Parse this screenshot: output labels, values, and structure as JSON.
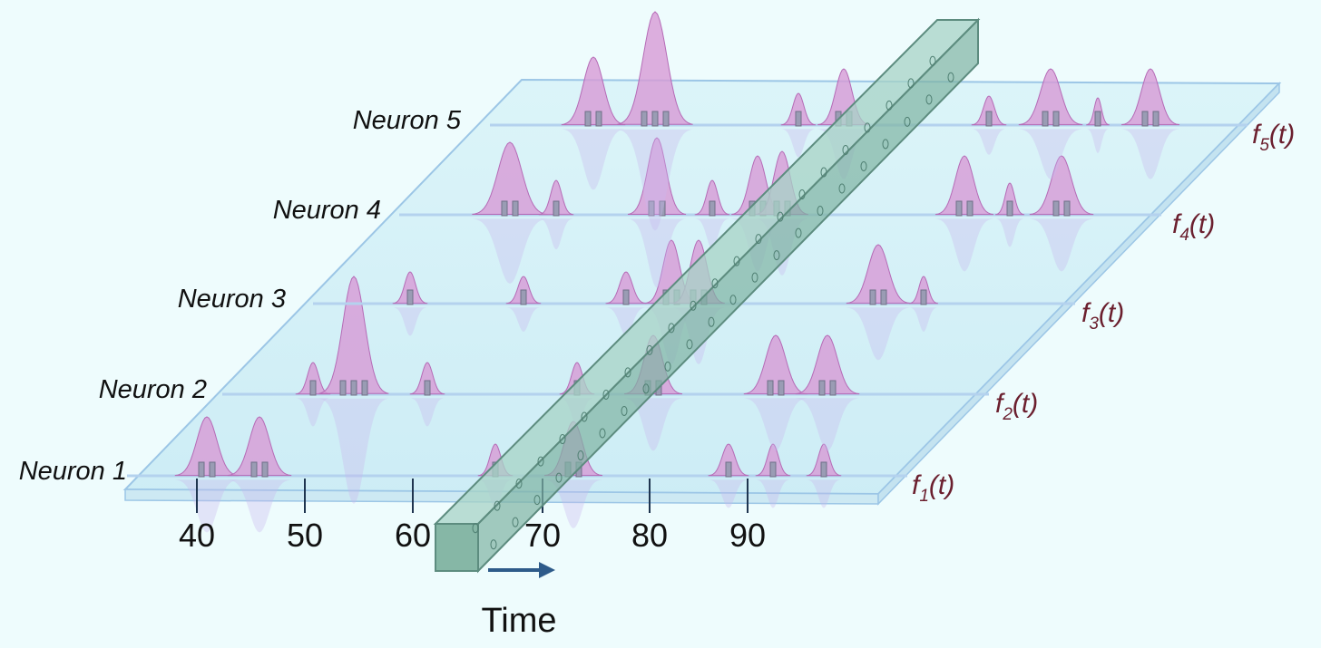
{
  "neurons": [
    "Neuron 1",
    "Neuron 2",
    "Neuron 3",
    "Neuron 4",
    "Neuron 5"
  ],
  "functions": [
    {
      "base": "f",
      "sub": "1",
      "arg": "(t)"
    },
    {
      "base": "f",
      "sub": "2",
      "arg": "(t)"
    },
    {
      "base": "f",
      "sub": "3",
      "arg": "(t)"
    },
    {
      "base": "f",
      "sub": "4",
      "arg": "(t)"
    },
    {
      "base": "f",
      "sub": "5",
      "arg": "(t)"
    }
  ],
  "axis": {
    "ticks": [
      "40",
      "50",
      "60",
      "70",
      "80",
      "90"
    ],
    "label": "Time"
  }
}
